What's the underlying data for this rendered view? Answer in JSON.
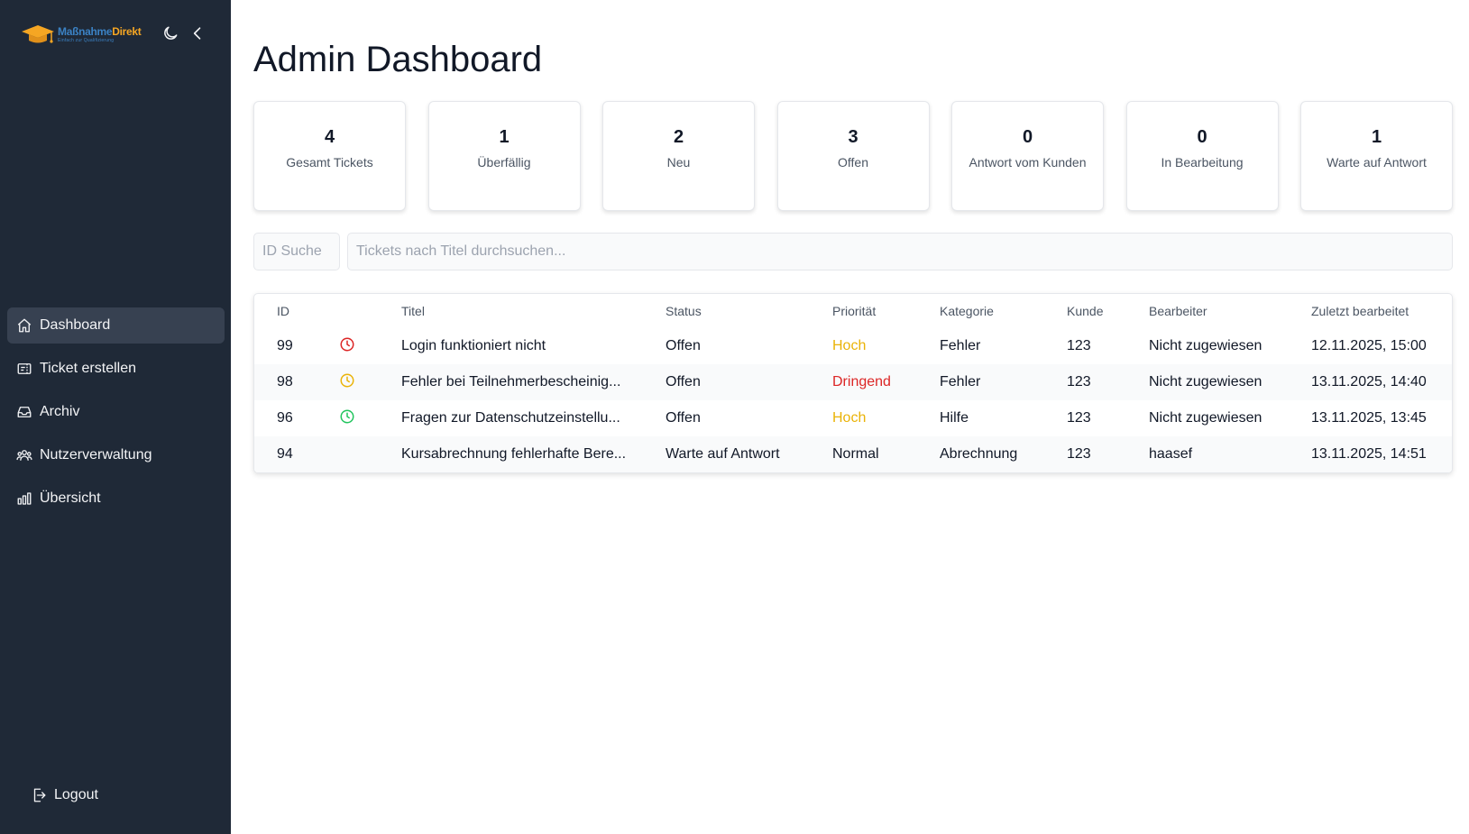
{
  "sidebar": {
    "logo": {
      "name_part1": "Maßnahme",
      "name_part2": "Direkt",
      "tagline": "Einfach zur Qualifizierung",
      "icon": "graduation-cap-icon"
    },
    "theme_toggle_icon": "moon-icon",
    "collapse_icon": "chevron-left-icon",
    "items": [
      {
        "label": "Dashboard",
        "icon": "home-icon",
        "active": true
      },
      {
        "label": "Ticket erstellen",
        "icon": "ticket-icon",
        "active": false
      },
      {
        "label": "Archiv",
        "icon": "inbox-icon",
        "active": false
      },
      {
        "label": "Nutzerverwaltung",
        "icon": "users-icon",
        "active": false
      },
      {
        "label": "Übersicht",
        "icon": "bar-chart-icon",
        "active": false
      }
    ],
    "logout_label": "Logout"
  },
  "main": {
    "title": "Admin Dashboard",
    "stats": [
      {
        "value": "4",
        "label": "Gesamt Tickets"
      },
      {
        "value": "1",
        "label": "Überfällig"
      },
      {
        "value": "2",
        "label": "Neu"
      },
      {
        "value": "3",
        "label": "Offen"
      },
      {
        "value": "0",
        "label": "Antwort vom Kunden"
      },
      {
        "value": "0",
        "label": "In Bearbeitung"
      },
      {
        "value": "1",
        "label": "Warte auf Antwort"
      }
    ],
    "search": {
      "id_placeholder": "ID Suche",
      "title_placeholder": "Tickets nach Titel durchsuchen..."
    },
    "table": {
      "headers": {
        "id": "ID",
        "title": "Titel",
        "status": "Status",
        "priority": "Priorität",
        "category": "Kategorie",
        "customer": "Kunde",
        "assignee": "Bearbeiter",
        "updated": "Zuletzt bearbeitet"
      },
      "rows": [
        {
          "id": "99",
          "clock": "red",
          "title": "Login funktioniert nicht",
          "status": "Offen",
          "priority": "Hoch",
          "category": "Fehler",
          "customer": "123",
          "assignee": "Nicht zugewiesen",
          "updated": "12.11.2025, 15:00"
        },
        {
          "id": "98",
          "clock": "yellow",
          "title": "Fehler bei Teilnehmerbescheinig...",
          "status": "Offen",
          "priority": "Dringend",
          "category": "Fehler",
          "customer": "123",
          "assignee": "Nicht zugewiesen",
          "updated": "13.11.2025, 14:40"
        },
        {
          "id": "96",
          "clock": "green",
          "title": "Fragen zur Datenschutzeinstellu...",
          "status": "Offen",
          "priority": "Hoch",
          "category": "Hilfe",
          "customer": "123",
          "assignee": "Nicht zugewiesen",
          "updated": "13.11.2025, 13:45"
        },
        {
          "id": "94",
          "clock": "",
          "title": "Kursabrechnung fehlerhafte Bere...",
          "status": "Warte auf Antwort",
          "priority": "Normal",
          "category": "Abrechnung",
          "customer": "123",
          "assignee": "haasef",
          "updated": "13.11.2025, 14:51"
        }
      ]
    }
  },
  "colors": {
    "sidebar_bg": "#1f2937",
    "sidebar_active": "#374151",
    "priority_hoch": "#eab308",
    "priority_dringend": "#dc2626",
    "clock_red": "#dc2626",
    "clock_yellow": "#eab308",
    "clock_green": "#22c55e"
  }
}
